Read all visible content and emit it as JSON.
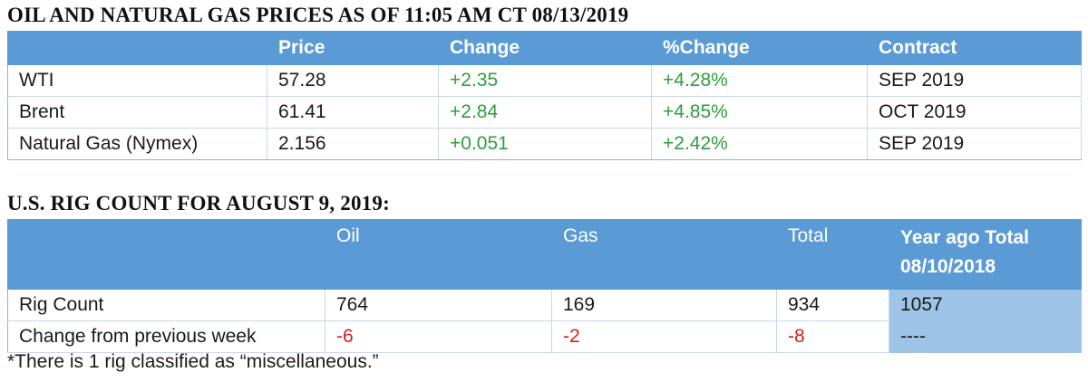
{
  "prices": {
    "title": "OIL AND NATURAL GAS PRICES AS OF 11:05 AM CT 08/13/2019",
    "columns": [
      "",
      "Price",
      "Change",
      "%Change",
      "Contract"
    ],
    "rows": [
      {
        "name": "WTI",
        "price": "57.28",
        "change": "+2.35",
        "pct": "+4.28%",
        "contract": "SEP 2019"
      },
      {
        "name": "Brent",
        "price": "61.41",
        "change": "+2.84",
        "pct": "+4.85%",
        "contract": "OCT 2019"
      },
      {
        "name": "Natural Gas (Nymex)",
        "price": "2.156",
        "change": "+0.051",
        "pct": "+2.42%",
        "contract": "SEP 2019"
      }
    ]
  },
  "rigs": {
    "title": "U.S. RIG COUNT FOR AUGUST 9, 2019:",
    "columns": {
      "oil": "Oil",
      "gas": "Gas",
      "total": "Total",
      "year_ago": "Year ago Total 08/10/2018"
    },
    "rows": [
      {
        "label": "Rig Count",
        "oil": "764",
        "gas": "169",
        "total": "934",
        "year_ago": "1057"
      },
      {
        "label": "Change from previous week",
        "oil": "-6",
        "gas": "-2",
        "total": "-8",
        "year_ago": "----"
      }
    ]
  },
  "footnote": "*There is 1 rig classified as “miscellaneous.”",
  "colors": {
    "header_blue": "#5b9bd5",
    "light_blue": "#9dc3e6",
    "positive": "#2e9e3a",
    "negative": "#d42020"
  }
}
